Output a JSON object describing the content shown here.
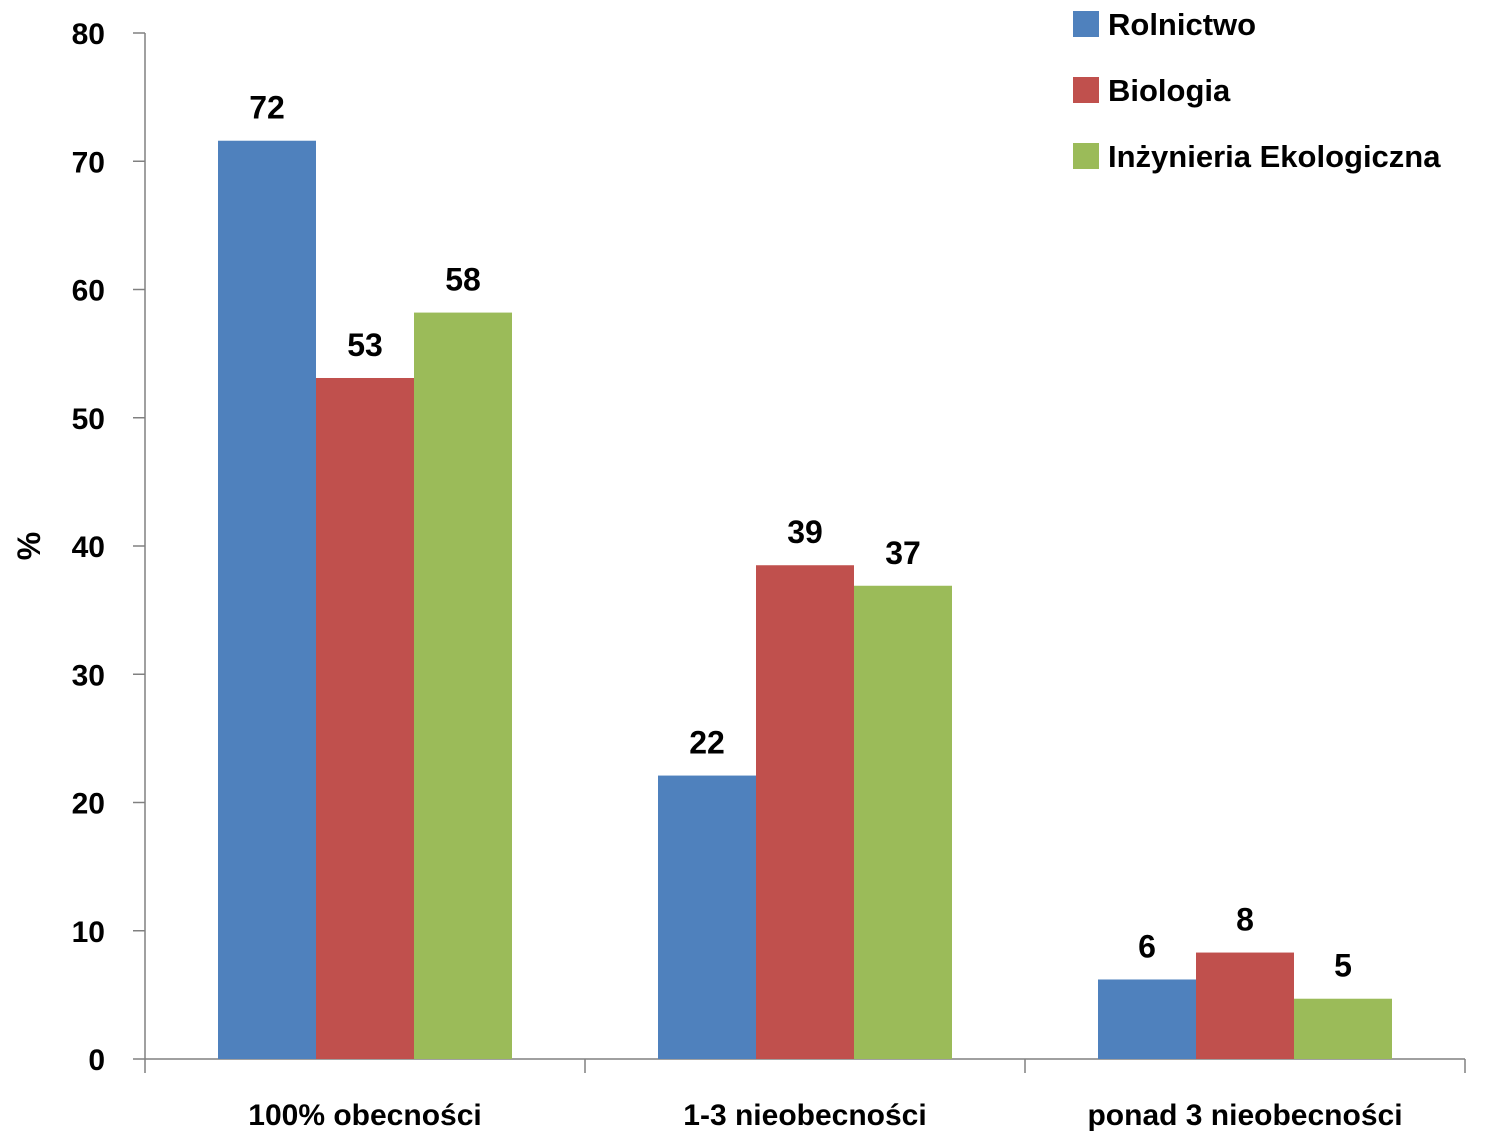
{
  "chart_data": {
    "type": "bar",
    "title": "",
    "xlabel": "",
    "ylabel": "%",
    "ylim": [
      0,
      80
    ],
    "yticks": [
      0,
      10,
      20,
      30,
      40,
      50,
      60,
      70,
      80
    ],
    "grid": false,
    "legend_position": "top-right",
    "categories": [
      "100% obecności",
      "1-3 nieobecności",
      "ponad 3 nieobecności"
    ],
    "series": [
      {
        "name": "Rolnictwo",
        "color": "#4F81BD",
        "values": [
          71.6,
          22.1,
          6.2
        ],
        "labels": [
          "72",
          "22",
          "6"
        ]
      },
      {
        "name": "Biologia",
        "color": "#C0504D",
        "values": [
          53.1,
          38.5,
          8.3
        ],
        "labels": [
          "53",
          "39",
          "8"
        ]
      },
      {
        "name": "Inżynieria Ekologiczna",
        "color": "#9BBB59",
        "values": [
          58.2,
          36.9,
          4.7
        ],
        "labels": [
          "58",
          "37",
          "5"
        ]
      }
    ]
  }
}
